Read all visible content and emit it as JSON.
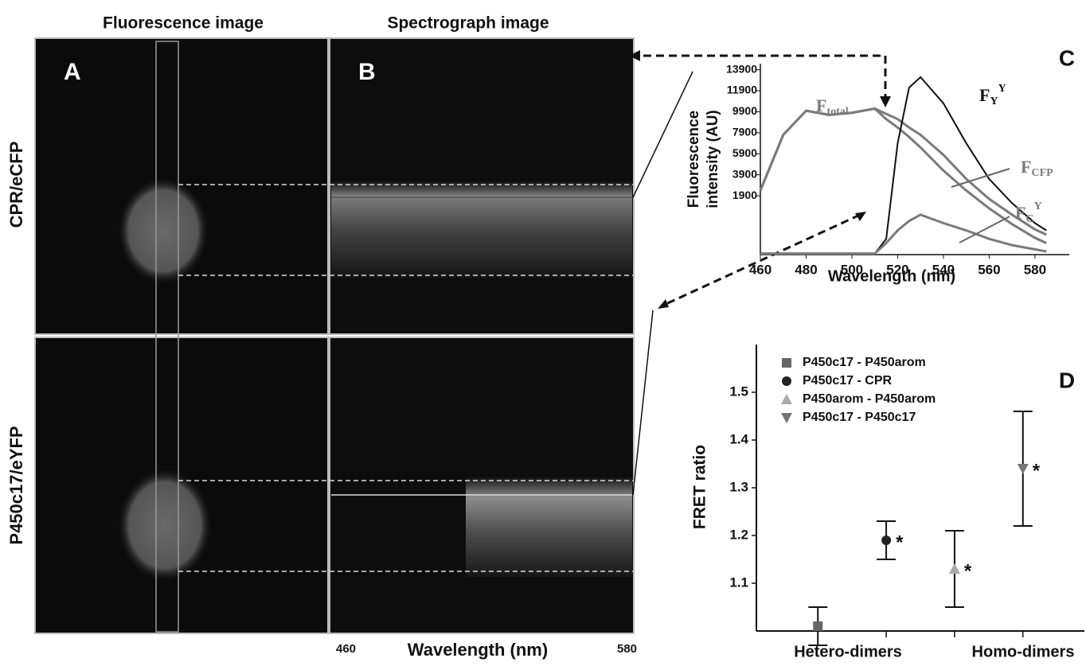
{
  "headers": {
    "fluorescence": "Fluorescence image",
    "spectrograph": "Spectrograph image"
  },
  "panels": {
    "a": "A",
    "b": "B"
  },
  "rows": [
    "CPR/eCFP",
    "P450c17/eYFP"
  ],
  "spectrograph_axis": {
    "start": "460",
    "label": "Wavelength (nm)",
    "end": "580"
  },
  "chart_data": [
    {
      "type": "line",
      "panel_label": "C",
      "xlabel": "Wavelength (nm)",
      "ylabel": [
        "Fluorescence",
        "intensity (AU)"
      ],
      "x": [
        460,
        470,
        480,
        490,
        500,
        510,
        515,
        520,
        525,
        530,
        540,
        550,
        560,
        570,
        580,
        585
      ],
      "series": [
        {
          "label": {
            "main": "F",
            "sub": "total"
          },
          "color": "#7a7a7a",
          "values": [
            2400,
            7700,
            10000,
            9600,
            9800,
            10200,
            9700,
            9200,
            8400,
            7700,
            5800,
            3500,
            1600,
            100,
            -1300,
            -1800
          ]
        },
        {
          "label": {
            "main": "F",
            "sub": "CFP"
          },
          "color": "#7a7a7a",
          "values": [
            2400,
            7700,
            10000,
            9600,
            9800,
            10200,
            9200,
            8400,
            7500,
            6500,
            4300,
            2400,
            700,
            -800,
            -2100,
            -2600
          ]
        },
        {
          "label": {
            "main": "F",
            "sub": "Y",
            "sup": "Y"
          },
          "color": "#111111",
          "values": [
            -3600,
            -3600,
            -3600,
            -3600,
            -3600,
            -3600,
            -2200,
            6900,
            12200,
            13200,
            10700,
            6900,
            3500,
            1200,
            -700,
            -1400
          ]
        },
        {
          "label": {
            "main": "F",
            "sub": "C",
            "sup": "Y"
          },
          "color": "#7a7a7a",
          "values": [
            -3600,
            -3600,
            -3600,
            -3600,
            -3600,
            -3600,
            -2600,
            -1400,
            -500,
            100,
            -700,
            -1400,
            -2200,
            -2800,
            -3200,
            -3400
          ]
        }
      ],
      "xlim": [
        460,
        595
      ],
      "ylim": [
        -3700,
        14100
      ],
      "xticks": [
        460,
        480,
        500,
        520,
        540,
        560,
        580
      ],
      "yticks": [
        1900,
        3900,
        5900,
        7900,
        9900,
        11900,
        13900
      ]
    },
    {
      "type": "scatter",
      "panel_label": "D",
      "ylabel": "FRET ratio",
      "group_labels": [
        "Hetero-dimers",
        "Homo-dimers"
      ],
      "legend": "upper left",
      "series": [
        {
          "name": "P450c17 - P450arom",
          "color": "#666666",
          "marker": "square",
          "x": [
            1
          ],
          "values": [
            1.01
          ],
          "errors": [
            0.04
          ]
        },
        {
          "name": "P450c17 - CPR",
          "color": "#222222",
          "marker": "circle",
          "x": [
            2
          ],
          "values": [
            1.19
          ],
          "errors": [
            0.04
          ],
          "note": "*"
        },
        {
          "name": "P450arom - P450arom",
          "color": "#aaaaaa",
          "marker": "triangle-up",
          "x": [
            3
          ],
          "values": [
            1.13
          ],
          "errors": [
            0.08
          ],
          "note": "*"
        },
        {
          "name": "P450c17 - P450c17",
          "color": "#777777",
          "marker": "triangle-down",
          "x": [
            4
          ],
          "values": [
            1.34
          ],
          "errors": [
            0.12
          ],
          "note": "*"
        }
      ],
      "xlim": [
        0.1,
        4.9
      ],
      "ylim": [
        1.0,
        1.6
      ],
      "xticks": [
        1,
        2,
        3,
        4
      ],
      "yticks": [
        1.1,
        1.2,
        1.3,
        1.4,
        1.5
      ]
    }
  ]
}
